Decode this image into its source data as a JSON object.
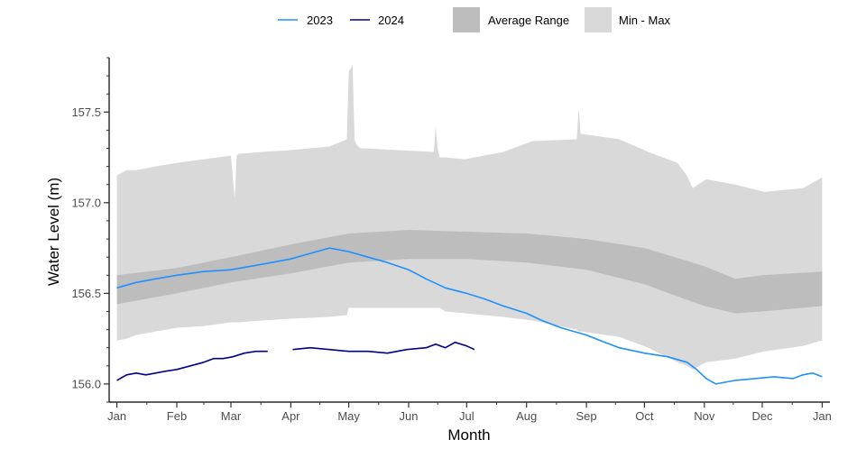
{
  "chart_data": {
    "type": "line",
    "xlabel": "Month",
    "ylabel": "Water Level (m)",
    "x_ticks": [
      "Jan",
      "Feb",
      "Mar",
      "Apr",
      "May",
      "Jun",
      "Jul",
      "Aug",
      "Sep",
      "Oct",
      "Nov",
      "Dec",
      "Jan"
    ],
    "y_ticks": [
      "156.0",
      "156.5",
      "157.0",
      "157.5"
    ],
    "y_tick_values": [
      156.0,
      156.5,
      157.0,
      157.5
    ],
    "ylim": [
      155.9,
      157.8
    ],
    "xlim_days": [
      -4,
      369
    ],
    "legend": {
      "position": "top",
      "items": [
        {
          "label": "2023",
          "kind": "line",
          "color": "#1e90ff"
        },
        {
          "label": "2024",
          "kind": "line",
          "color": "#00008b"
        },
        {
          "label": "Average Range",
          "kind": "fill",
          "color": "#bdbdbd"
        },
        {
          "label": "Min - Max",
          "kind": "fill",
          "color": "#d9d9d9"
        }
      ]
    },
    "colors": {
      "s2023": "#1e90ff",
      "s2024": "#00008b",
      "avg_range": "#bdbdbd",
      "min_max": "#d9d9d9"
    },
    "min_max": {
      "x": [
        0,
        5,
        10,
        20,
        31,
        45,
        59,
        61,
        62,
        63,
        75,
        90,
        110,
        119,
        120,
        122,
        123,
        124,
        126,
        128,
        145,
        164,
        165,
        166,
        167,
        170,
        180,
        200,
        215,
        238,
        239,
        240,
        260,
        275,
        290,
        295,
        298,
        305,
        320,
        335,
        355,
        365
      ],
      "upper": [
        157.15,
        157.18,
        157.18,
        157.2,
        157.22,
        157.24,
        157.26,
        157.02,
        157.26,
        157.27,
        157.28,
        157.29,
        157.31,
        157.35,
        157.72,
        157.76,
        157.35,
        157.32,
        157.3,
        157.3,
        157.29,
        157.28,
        157.42,
        157.3,
        157.25,
        157.25,
        157.24,
        157.28,
        157.34,
        157.35,
        157.52,
        157.38,
        157.35,
        157.28,
        157.22,
        157.15,
        157.08,
        157.13,
        157.1,
        157.06,
        157.08,
        157.14
      ],
      "lower": [
        156.24,
        156.25,
        156.27,
        156.29,
        156.31,
        156.32,
        156.34,
        156.34,
        156.34,
        156.34,
        156.35,
        156.36,
        156.37,
        156.38,
        156.42,
        156.42,
        156.42,
        156.42,
        156.42,
        156.42,
        156.42,
        156.42,
        156.42,
        156.42,
        156.42,
        156.4,
        156.39,
        156.37,
        156.35,
        156.3,
        156.29,
        156.29,
        156.26,
        156.2,
        156.12,
        156.1,
        156.08,
        156.12,
        156.14,
        156.18,
        156.21,
        156.24
      ]
    },
    "avg_range": {
      "x": [
        0,
        31,
        59,
        90,
        120,
        151,
        181,
        212,
        243,
        273,
        304,
        320,
        334,
        365
      ],
      "upper": [
        156.6,
        156.64,
        156.7,
        156.77,
        156.83,
        156.85,
        156.84,
        156.83,
        156.8,
        156.75,
        156.65,
        156.58,
        156.6,
        156.62
      ],
      "lower": [
        156.44,
        156.5,
        156.56,
        156.61,
        156.67,
        156.69,
        156.69,
        156.67,
        156.63,
        156.55,
        156.43,
        156.39,
        156.4,
        156.43
      ]
    },
    "series": [
      {
        "name": "2023",
        "x": [
          0,
          10,
          20,
          31,
          45,
          59,
          75,
          90,
          100,
          110,
          120,
          130,
          140,
          151,
          160,
          170,
          181,
          190,
          200,
          212,
          220,
          230,
          243,
          250,
          260,
          273,
          285,
          295,
          300,
          305,
          310,
          320,
          330,
          340,
          350,
          355,
          360,
          365
        ],
        "y": [
          156.53,
          156.56,
          156.58,
          156.6,
          156.62,
          156.63,
          156.66,
          156.69,
          156.72,
          156.75,
          156.73,
          156.7,
          156.67,
          156.63,
          156.58,
          156.53,
          156.5,
          156.47,
          156.43,
          156.39,
          156.35,
          156.31,
          156.27,
          156.24,
          156.2,
          156.17,
          156.15,
          156.12,
          156.08,
          156.03,
          156.0,
          156.02,
          156.03,
          156.04,
          156.03,
          156.05,
          156.06,
          156.04
        ]
      },
      {
        "name": "2024",
        "segments": [
          {
            "x": [
              0,
              5,
              10,
              15,
              20,
              25,
              31,
              38,
              45,
              50,
              55,
              60,
              66,
              72,
              78
            ],
            "y": [
              156.02,
              156.05,
              156.06,
              156.05,
              156.06,
              156.07,
              156.08,
              156.1,
              156.12,
              156.14,
              156.14,
              156.15,
              156.17,
              156.18,
              156.18
            ]
          },
          {
            "x": [
              91,
              100,
              110,
              120,
              130,
              140,
              150,
              160,
              165,
              170,
              175,
              181,
              185
            ],
            "y": [
              156.19,
              156.2,
              156.19,
              156.18,
              156.18,
              156.17,
              156.19,
              156.2,
              156.22,
              156.2,
              156.23,
              156.21,
              156.19
            ]
          }
        ]
      }
    ]
  }
}
